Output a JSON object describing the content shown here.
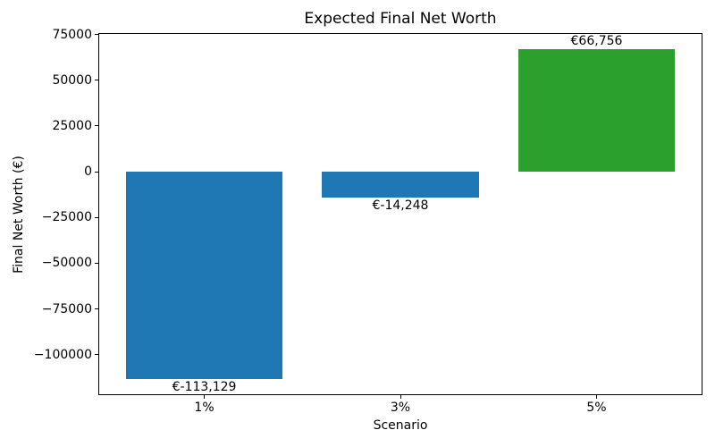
{
  "chart_data": {
    "type": "bar",
    "title": "Expected Final Net Worth",
    "xlabel": "Scenario",
    "ylabel": "Final Net Worth (€)",
    "categories": [
      "1%",
      "3%",
      "5%"
    ],
    "values": [
      -113129,
      -14248,
      66756
    ],
    "bar_labels": [
      "€-113,129",
      "€-14,248",
      "€66,756"
    ],
    "bar_colors": [
      "#1f77b4",
      "#1f77b4",
      "#2ca02c"
    ],
    "yticks": [
      -100000,
      -75000,
      -50000,
      -25000,
      0,
      25000,
      50000,
      75000
    ],
    "ytick_labels": [
      "−100000",
      "−75000",
      "−50000",
      "−25000",
      "0",
      "25000",
      "50000",
      "75000"
    ],
    "ylim": [
      -122123,
      75750
    ],
    "xlim": [
      -0.54,
      2.54
    ],
    "bar_width": 0.8,
    "grid": false,
    "legend": null,
    "background_color": "#ffffff",
    "spine_color": "#000000",
    "text_color": "#000000"
  }
}
